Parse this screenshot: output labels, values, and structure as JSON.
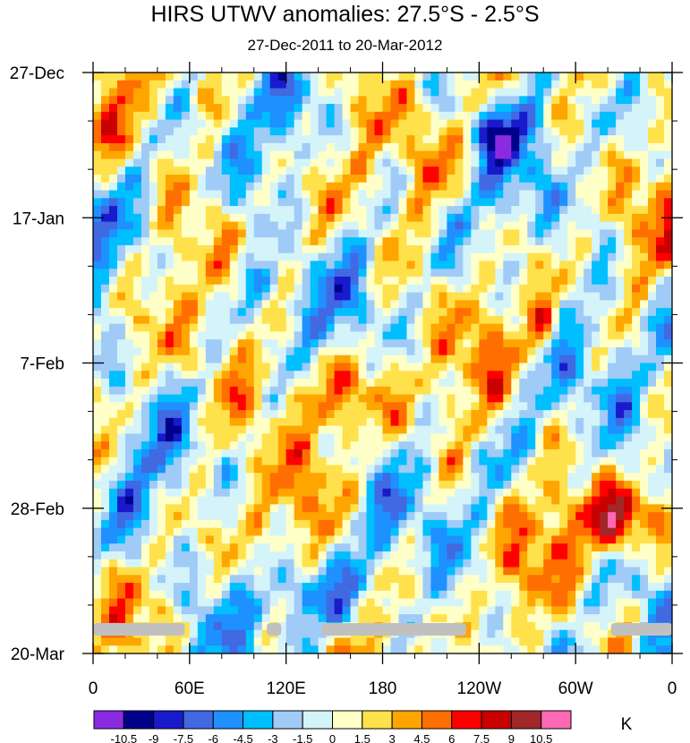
{
  "chart_data": {
    "type": "heatmap",
    "title": "HIRS UTWV anomalies: 27.5°S - 2.5°S",
    "subtitle": "27-Dec-2011 to 20-Mar-2012",
    "xlabel": "",
    "ylabel": "",
    "units": "K",
    "x_ticks": [
      "0",
      "60E",
      "120E",
      "180",
      "120W",
      "60W",
      "0"
    ],
    "y_ticks": [
      "27-Dec",
      "17-Jan",
      "7-Feb",
      "28-Feb",
      "20-Mar"
    ],
    "xlim_deg_east": [
      0,
      360
    ],
    "ylim_days": [
      0,
      84
    ],
    "contour_levels": [
      "-10.5",
      "-9",
      "-7.5",
      "-6",
      "-4.5",
      "-3",
      "-1.5",
      "0",
      "1.5",
      "3",
      "4.5",
      "6",
      "7.5",
      "9",
      "10.5"
    ],
    "colors": [
      "#8a2be2",
      "#00008b",
      "#1a1acd",
      "#4169e1",
      "#1e90ff",
      "#00bfff",
      "#a0cbf7",
      "#d4f4fa",
      "#ffffc8",
      "#ffe14c",
      "#ffa500",
      "#ff6e00",
      "#ff0000",
      "#c80000",
      "#a02828",
      "#ff69b4"
    ],
    "missing_color": "#c0c0c0",
    "missing_data_segments_lon": [
      [
        0,
        57
      ],
      [
        108,
        117
      ],
      [
        142,
        232
      ],
      [
        322,
        360
      ]
    ],
    "missing_data_day": 80.5
  }
}
